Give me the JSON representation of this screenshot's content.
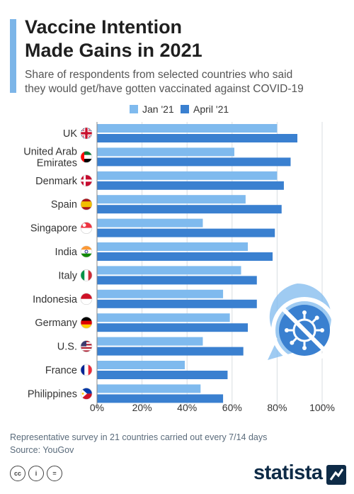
{
  "header": {
    "title_line1": "Vaccine Intention",
    "title_line2": "Made Gains in 2021",
    "subtitle_line1": "Share of respondents from selected countries who said",
    "subtitle_line2": "they would get/have gotten vaccinated against COVID-19"
  },
  "colors": {
    "accent": "#7cb5e8",
    "jan": "#7fbaee",
    "april": "#3a80d0",
    "grid": "#d9dde2"
  },
  "chart_data": {
    "type": "bar",
    "orientation": "horizontal",
    "categories": [
      [
        "UK"
      ],
      [
        "United Arab",
        "Emirates"
      ],
      [
        "Denmark"
      ],
      [
        "Spain"
      ],
      [
        "Singapore"
      ],
      [
        "India"
      ],
      [
        "Italy"
      ],
      [
        "Indonesia"
      ],
      [
        "Germany"
      ],
      [
        "U.S."
      ],
      [
        "France"
      ],
      [
        "Philippines"
      ]
    ],
    "series": [
      {
        "name": "Jan '21",
        "color": "#7fbaee",
        "values": [
          80,
          61,
          80,
          66,
          47,
          67,
          64,
          56,
          59,
          47,
          39,
          46
        ]
      },
      {
        "name": "April '21",
        "color": "#3a80d0",
        "values": [
          89,
          86,
          83,
          82,
          79,
          78,
          71,
          71,
          67,
          65,
          58,
          56
        ]
      }
    ],
    "xlim": [
      0,
      100
    ],
    "xticks": [
      "0%",
      "20%",
      "40%",
      "60%",
      "80%",
      "100%"
    ],
    "grid": true,
    "legend_position": "top-center"
  },
  "flags": [
    "uk-flag-icon",
    "uae-flag-icon",
    "denmark-flag-icon",
    "spain-flag-icon",
    "singapore-flag-icon",
    "india-flag-icon",
    "italy-flag-icon",
    "indonesia-flag-icon",
    "germany-flag-icon",
    "us-flag-icon",
    "france-flag-icon",
    "philippines-flag-icon"
  ],
  "decoration_icon": "no-virus-speech-bubble-icon",
  "footer": {
    "note": "Representative survey in 21 countries carried out every 7/14 days",
    "source": "Source: YouGov",
    "cc_labels": [
      "cc",
      "i",
      "="
    ],
    "brand": "statista"
  }
}
